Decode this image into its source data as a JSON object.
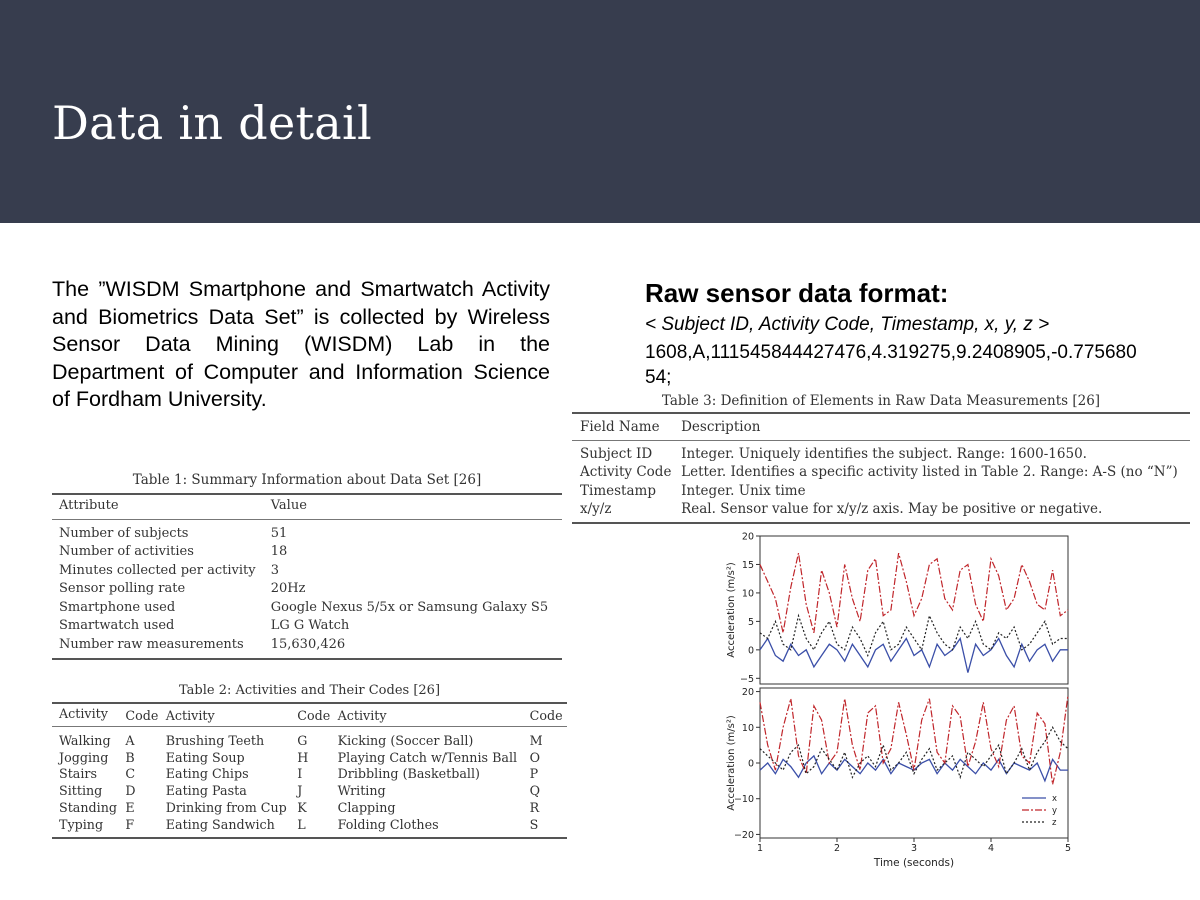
{
  "slide": {
    "title": "Data in detail"
  },
  "intro": {
    "text": "The ”WISDM Smartphone and Smartwatch Activity and Biometrics Data Set” is collected by Wireless Sensor Data Mining (WISDM) Lab in the Department of Computer and Information Science of Fordham University."
  },
  "raw": {
    "title": "Raw sensor data format:",
    "format": "< Subject ID, Activity Code, Timestamp, x, y, z >",
    "sample": "1608,A,111545844427476,4.319275,9.2408905,-0.77568054;"
  },
  "table1": {
    "caption": "Table 1: Summary Information about Data Set [26]",
    "headers": [
      "Attribute",
      "Value"
    ],
    "rows": [
      [
        "Number of subjects",
        "51"
      ],
      [
        "Number of activities",
        "18"
      ],
      [
        "Minutes collected per activity",
        "3"
      ],
      [
        "Sensor polling rate",
        "20Hz"
      ],
      [
        "Smartphone used",
        "Google Nexus 5/5x or Samsung Galaxy S5"
      ],
      [
        "Smartwatch used",
        "LG G Watch"
      ],
      [
        "Number raw measurements",
        "15,630,426"
      ]
    ]
  },
  "table2": {
    "caption": "Table 2: Activities and Their Codes [26]",
    "headers": [
      "Activity",
      "Code",
      "Activity",
      "Code",
      "Activity",
      "Code"
    ],
    "rows": [
      [
        "Walking",
        "A",
        "Brushing Teeth",
        "G",
        "Kicking (Soccer Ball)",
        "M"
      ],
      [
        "Jogging",
        "B",
        "Eating Soup",
        "H",
        "Playing Catch w/Tennis Ball",
        "O"
      ],
      [
        "Stairs",
        "C",
        "Eating Chips",
        "I",
        "Dribbling (Basketball)",
        "P"
      ],
      [
        "Sitting",
        "D",
        "Eating Pasta",
        "J",
        "Writing",
        "Q"
      ],
      [
        "Standing",
        "E",
        "Drinking from Cup",
        "K",
        "Clapping",
        "R"
      ],
      [
        "Typing",
        "F",
        "Eating Sandwich",
        "L",
        "Folding Clothes",
        "S"
      ]
    ]
  },
  "table3": {
    "caption": "Table 3: Definition of Elements in Raw Data Measurements [26]",
    "headers": [
      "Field Name",
      "Description"
    ],
    "rows": [
      [
        "Subject ID",
        "Integer. Uniquely identifies the subject. Range: 1600-1650."
      ],
      [
        "Activity Code",
        "Letter. Identifies a specific activity listed in Table 2. Range: A-S (no “N”)"
      ],
      [
        "Timestamp",
        "Integer. Unix time"
      ],
      [
        "x/y/z",
        "Real. Sensor value for x/y/z axis. May be positive or negative."
      ]
    ]
  },
  "chart_data": {
    "type": "line",
    "xlabel": "Time (seconds)",
    "xlim": [
      1,
      5
    ],
    "x_ticks": [
      "1",
      "2",
      "3",
      "4",
      "5"
    ],
    "legend_position": "bottom-right",
    "colors": {
      "x": "#3b4fa8",
      "y": "#c0262b",
      "z": "#222222"
    },
    "panels": [
      {
        "ylabel": "Acceleration (m/s²)",
        "ylim": [
          -6,
          20
        ],
        "y_ticks": [
          "20",
          "15",
          "10",
          "5",
          "0",
          "−5"
        ],
        "x": [
          1,
          1.1,
          1.2,
          1.3,
          1.4,
          1.5,
          1.6,
          1.7,
          1.8,
          1.9,
          2,
          2.1,
          2.2,
          2.3,
          2.4,
          2.5,
          2.6,
          2.7,
          2.8,
          2.9,
          3,
          3.1,
          3.2,
          3.3,
          3.4,
          3.5,
          3.6,
          3.7,
          3.8,
          3.9,
          4,
          4.1,
          4.2,
          4.3,
          4.4,
          4.5,
          4.6,
          4.7,
          4.8,
          4.9,
          5
        ],
        "series": [
          {
            "name": "x",
            "values": [
              0,
              2,
              -1,
              -2,
              1,
              -1,
              0,
              -3,
              -1,
              1,
              0,
              -2,
              1,
              -1,
              -3,
              0,
              1,
              -2,
              0,
              2,
              -1,
              0,
              -3,
              1,
              -1,
              0,
              2,
              -4,
              1,
              -1,
              0,
              2,
              -1,
              -3,
              1,
              -2,
              0,
              1,
              -2,
              0,
              0
            ]
          },
          {
            "name": "y",
            "values": [
              15,
              12,
              9,
              3,
              11,
              17,
              8,
              3,
              14,
              10,
              4,
              15,
              9,
              5,
              14,
              16,
              6,
              7,
              17,
              12,
              6,
              9,
              15,
              16,
              9,
              7,
              14,
              15,
              8,
              5,
              16,
              13,
              7,
              9,
              15,
              12,
              8,
              7,
              14,
              6,
              7
            ]
          },
          {
            "name": "z",
            "values": [
              3,
              2,
              5,
              1,
              0,
              6,
              2,
              0,
              3,
              5,
              1,
              0,
              4,
              2,
              -1,
              3,
              5,
              0,
              1,
              4,
              2,
              0,
              6,
              3,
              1,
              0,
              4,
              2,
              5,
              1,
              0,
              3,
              2,
              4,
              0,
              1,
              3,
              5,
              1,
              2,
              2
            ]
          }
        ]
      },
      {
        "ylabel": "Acceleration (m/s²)",
        "ylim": [
          -21,
          21
        ],
        "y_ticks": [
          "20",
          "10",
          "0",
          "−10",
          "−20"
        ],
        "x": [
          1,
          1.1,
          1.2,
          1.3,
          1.4,
          1.5,
          1.6,
          1.7,
          1.8,
          1.9,
          2,
          2.1,
          2.2,
          2.3,
          2.4,
          2.5,
          2.6,
          2.7,
          2.8,
          2.9,
          3,
          3.1,
          3.2,
          3.3,
          3.4,
          3.5,
          3.6,
          3.7,
          3.8,
          3.9,
          4,
          4.1,
          4.2,
          4.3,
          4.4,
          4.5,
          4.6,
          4.7,
          4.8,
          4.9,
          5
        ],
        "series": [
          {
            "name": "x",
            "values": [
              -2,
              0,
              -3,
              1,
              -1,
              -4,
              0,
              2,
              -3,
              0,
              -2,
              1,
              -1,
              -3,
              0,
              -2,
              1,
              -3,
              0,
              -1,
              -2,
              0,
              1,
              -3,
              0,
              -2,
              1,
              -1,
              -3,
              0,
              -2,
              1,
              -3,
              0,
              -1,
              -2,
              0,
              -5,
              1,
              -2,
              -2
            ]
          },
          {
            "name": "y",
            "values": [
              17,
              5,
              -2,
              10,
              18,
              2,
              -3,
              16,
              12,
              0,
              3,
              18,
              5,
              -2,
              14,
              16,
              0,
              4,
              17,
              8,
              -2,
              12,
              18,
              3,
              0,
              16,
              13,
              -1,
              6,
              17,
              4,
              -1,
              12,
              16,
              2,
              0,
              14,
              11,
              -6,
              3,
              19
            ]
          },
          {
            "name": "z",
            "values": [
              4,
              2,
              0,
              -2,
              3,
              5,
              -3,
              -1,
              4,
              1,
              -2,
              3,
              -4,
              0,
              2,
              -1,
              5,
              -2,
              0,
              3,
              -3,
              1,
              4,
              -2,
              0,
              2,
              -4,
              3,
              1,
              -1,
              2,
              5,
              -3,
              0,
              4,
              -2,
              3,
              6,
              10,
              6,
              4
            ]
          }
        ]
      }
    ]
  }
}
